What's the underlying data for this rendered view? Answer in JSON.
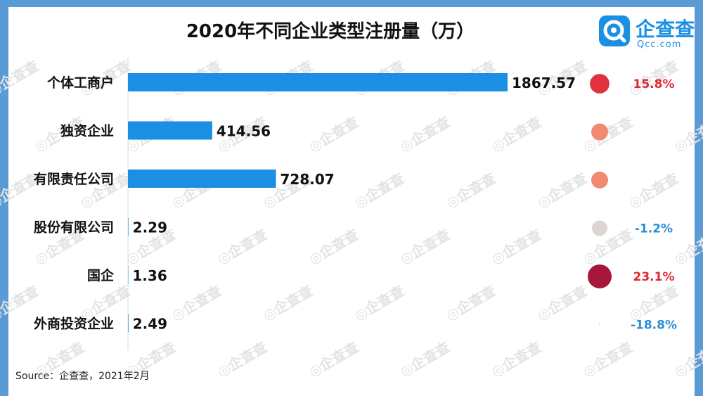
{
  "title": "2020年不同企业类型注册量（万）",
  "brand": {
    "name": "企查查",
    "sub": "Qcc.com"
  },
  "watermark_text": "企查查",
  "source": "Source：企查查，2021年2月",
  "colors": {
    "bar": "#1a8fe3",
    "border": "#5b9bd5",
    "positive": "#e0292e",
    "negative": "#2a8fd6"
  },
  "chart_data": {
    "type": "bar",
    "orientation": "horizontal",
    "categories": [
      "个体工商户",
      "独资企业",
      "有限责任公司",
      "股份有限公司",
      "国企",
      "外商投资企业"
    ],
    "values": [
      1867.57,
      414.56,
      728.07,
      2.29,
      1.36,
      2.49
    ],
    "value_labels": [
      "1867.57",
      "414.56",
      "728.07",
      "2.29",
      "1.36",
      "2.49"
    ],
    "xlim": [
      0,
      2000
    ],
    "growth": {
      "labels": [
        "15.8%",
        "",
        "",
        "-1.2%",
        "23.1%",
        "-18.8%"
      ],
      "values": [
        15.8,
        null,
        null,
        -1.2,
        23.1,
        -18.8
      ],
      "circle_colors": [
        "#e0323e",
        "#f08a72",
        "#f08a72",
        "#dcd5d3",
        "#a8163a",
        "#c9d6e0"
      ],
      "label_colors": [
        "#e0292e",
        "",
        "",
        "#2a8fd6",
        "#e0292e",
        "#2a8fd6"
      ]
    },
    "grid": false
  }
}
